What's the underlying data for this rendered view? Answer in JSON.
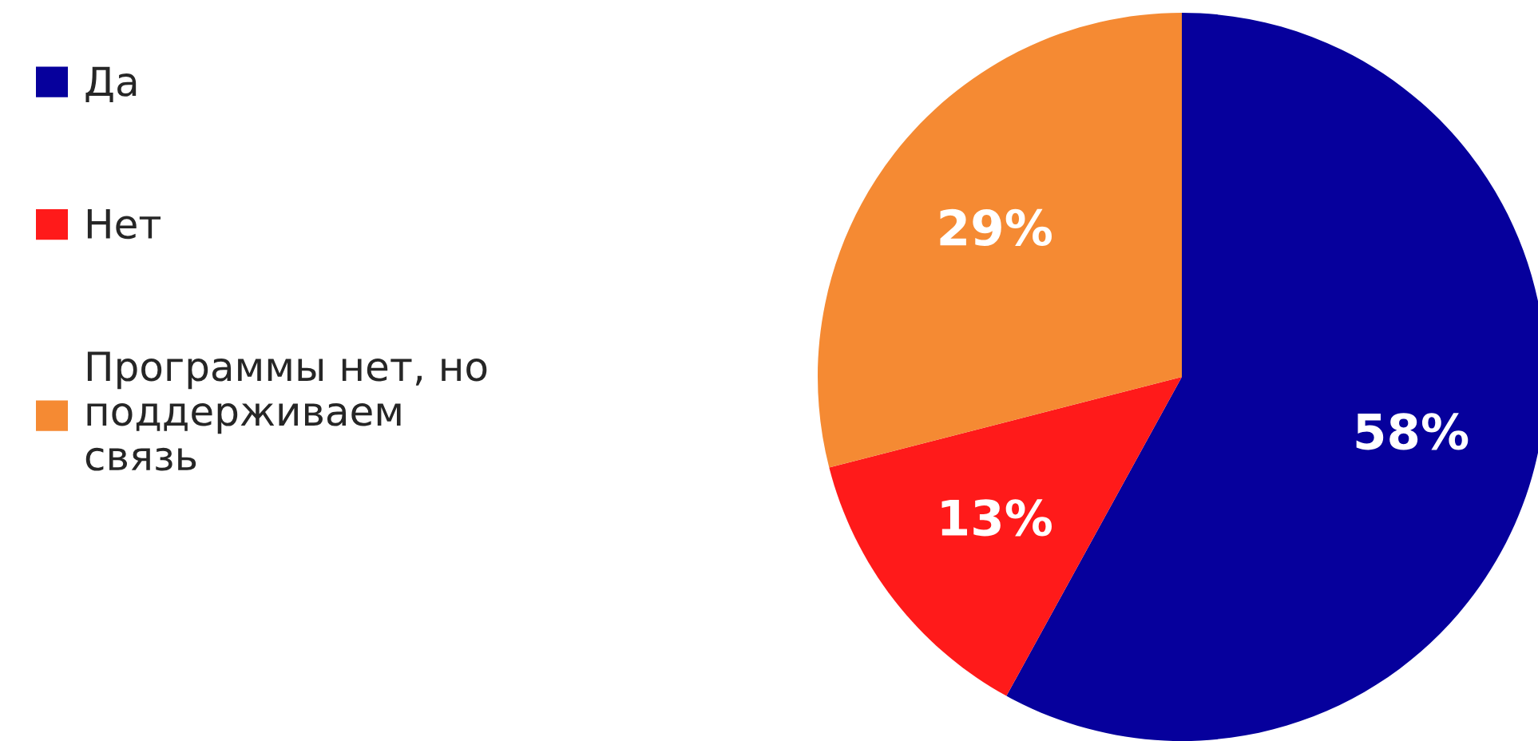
{
  "chart_data": {
    "type": "pie",
    "categories": [
      "Да",
      "Нет",
      "Программы нет, но\nподдерживаем\nсвязь"
    ],
    "values": [
      58,
      13,
      29
    ],
    "colors": [
      "#06009c",
      "#ff1a1a",
      "#f58a33"
    ],
    "value_labels": [
      "58%",
      "13%",
      "29%"
    ],
    "legend": "left"
  }
}
